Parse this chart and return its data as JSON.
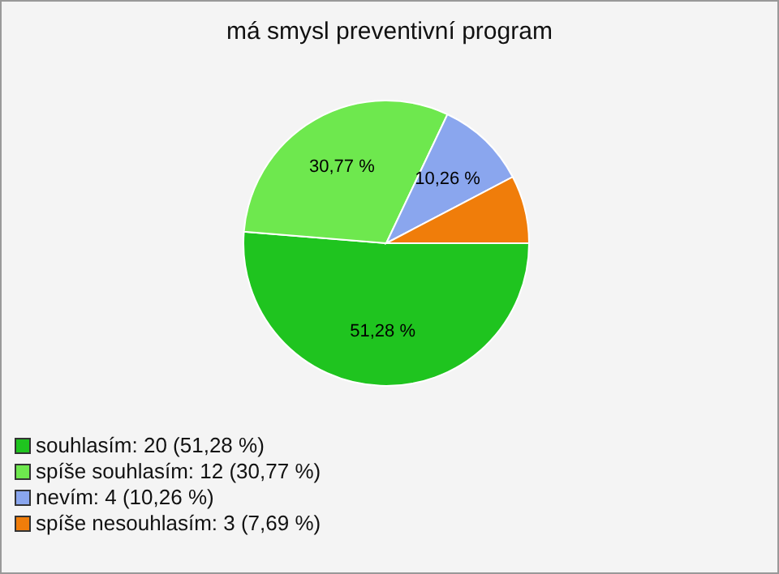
{
  "chart_data": {
    "type": "pie",
    "title": "má smysl preventivní program",
    "categories": [
      "souhlasím: 20 (51,28 %)",
      "spíše souhlasím: 12 (30,77 %)",
      "nevím: 4 (10,26 %)",
      "spíše nesouhlasím: 3 (7,69 %)"
    ],
    "values": [
      51.28,
      30.77,
      10.26,
      7.69
    ],
    "colors": [
      "#1fc41f",
      "#6ee84e",
      "#8aa6ee",
      "#f07d0a"
    ],
    "value_labels": [
      "51,28 %",
      "30,77 %",
      "10,26 %",
      null
    ],
    "legend": "bottom left"
  }
}
